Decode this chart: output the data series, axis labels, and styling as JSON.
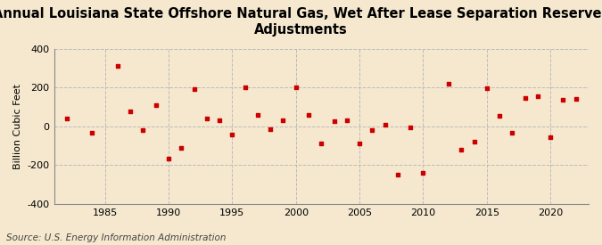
{
  "title": "Annual Louisiana State Offshore Natural Gas, Wet After Lease Separation Reserves\nAdjustments",
  "ylabel": "Billion Cubic Feet",
  "source": "Source: U.S. Energy Information Administration",
  "background_color": "#f5e8ce",
  "plot_bg_color": "#f5e8ce",
  "marker_color": "#cc0000",
  "years": [
    1982,
    1984,
    1986,
    1987,
    1988,
    1989,
    1990,
    1991,
    1992,
    1993,
    1994,
    1995,
    1996,
    1997,
    1998,
    1999,
    2000,
    2001,
    2002,
    2003,
    2004,
    2005,
    2006,
    2007,
    2008,
    2009,
    2010,
    2012,
    2013,
    2014,
    2015,
    2016,
    2017,
    2018,
    2019,
    2020,
    2021,
    2022
  ],
  "values": [
    40,
    -35,
    310,
    75,
    -20,
    110,
    -165,
    -110,
    190,
    40,
    30,
    -45,
    200,
    60,
    -15,
    30,
    200,
    60,
    -90,
    25,
    30,
    -90,
    -20,
    10,
    -250,
    -5,
    -240,
    220,
    -120,
    -80,
    195,
    55,
    -35,
    145,
    155,
    -55,
    135,
    140
  ],
  "ylim": [
    -400,
    400
  ],
  "yticks": [
    -400,
    -200,
    0,
    200,
    400
  ],
  "xtick_positions": [
    1985,
    1990,
    1995,
    2000,
    2005,
    2010,
    2015,
    2020
  ],
  "xlim": [
    1981,
    2023
  ],
  "grid_color": "#bbbbbb",
  "title_fontsize": 10.5,
  "label_fontsize": 8,
  "source_fontsize": 7.5
}
